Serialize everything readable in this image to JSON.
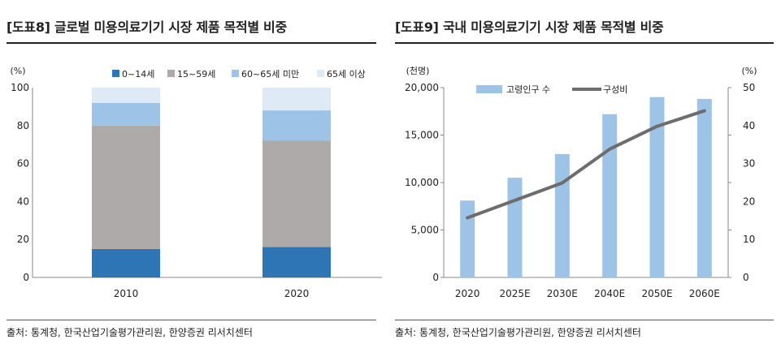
{
  "left": {
    "title": "[도표8] 글로벌 미용의료기기 시장 제품 목적별 비중",
    "source": "출처: 통계청, 한국산업기술평가관리원, 한양증권 리서치센터"
  },
  "right": {
    "title": "[도표9] 국내 미용의료기기 시장 제품 목적별 비중",
    "source": "출처: 통계청, 한국산업기술평가관리원, 한양증권 리서치센터"
  },
  "chart_data": [
    {
      "type": "bar",
      "stacked": true,
      "unit_label": "(%)",
      "categories": [
        "2010",
        "2020"
      ],
      "series": [
        {
          "name": "0~14세",
          "color": "#2e75b6",
          "values": [
            15,
            16
          ]
        },
        {
          "name": "15~59세",
          "color": "#aeaaaa",
          "values": [
            65,
            56
          ]
        },
        {
          "name": "60~65세 미만",
          "color": "#9dc3e6",
          "values": [
            12,
            16
          ]
        },
        {
          "name": "65세 이상",
          "color": "#deebf7",
          "values": [
            8,
            12
          ]
        }
      ],
      "ylim": [
        0,
        100
      ],
      "yticks": [
        0,
        20,
        40,
        60,
        80,
        100
      ],
      "legend": "top",
      "grid": false
    },
    {
      "type": "bar+line",
      "categories": [
        "2020",
        "2025E",
        "2030E",
        "2040E",
        "2050E",
        "2060E"
      ],
      "left_unit_label": "(천명)",
      "right_unit_label": "(%)",
      "series": [
        {
          "name": "고령인구 수",
          "type": "bar",
          "axis": "left",
          "color": "#9dc3e6",
          "values": [
            8100,
            10500,
            13000,
            17200,
            19000,
            18800
          ]
        },
        {
          "name": "구성비",
          "type": "line",
          "axis": "right",
          "color": "#6d6d6d",
          "values": [
            15.7,
            20.3,
            24.9,
            33.8,
            39.8,
            43.9
          ]
        }
      ],
      "ylim_left": [
        0,
        20000
      ],
      "yticks_left": [
        "0",
        "5,000",
        "10,000",
        "15,000",
        "20,000"
      ],
      "yticks_left_values": [
        0,
        5000,
        10000,
        15000,
        20000
      ],
      "ylim_right": [
        0,
        50
      ],
      "yticks_right": [
        0,
        10,
        20,
        30,
        40,
        50
      ],
      "legend": "top-left",
      "grid": false
    }
  ]
}
